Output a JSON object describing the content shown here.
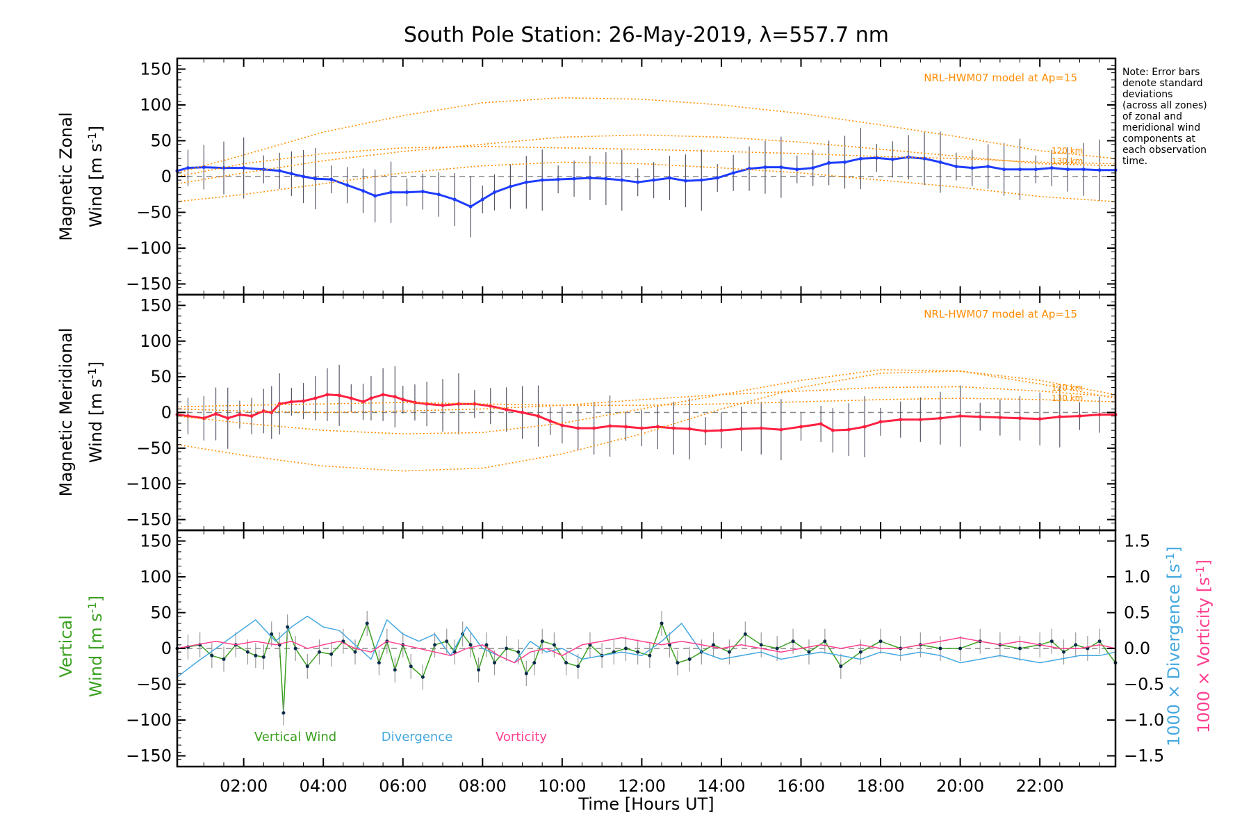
{
  "chart_data": [
    {
      "type": "line",
      "panel": "zonal",
      "title": "South Pole Station: 26-May-2019, λ=557.7 nm",
      "ylabel_line1": "Magnetic Zonal",
      "ylabel_line2": "Wind [m s",
      "ylabel_sup": "-1",
      "ylabel_close": "]",
      "xlim": [
        0.33,
        23.9
      ],
      "ylim": [
        -165,
        165
      ],
      "yticks": [
        -150,
        -100,
        -50,
        0,
        50,
        100,
        150
      ],
      "ytick_labels": [
        "−150",
        "−100",
        "−50",
        "0",
        "50",
        "100",
        "150"
      ],
      "model_label": "NRL-HWM07 model at Ap=15",
      "alt_labels": [
        "120 km",
        "130 km"
      ],
      "series": [
        {
          "name": "Zonal wind",
          "color": "#1e3cff",
          "x": [
            0.33,
            0.6,
            1.0,
            1.5,
            2.0,
            2.5,
            2.9,
            3.2,
            3.5,
            3.8,
            4.2,
            4.6,
            5.0,
            5.3,
            5.7,
            6.1,
            6.5,
            6.9,
            7.3,
            7.7,
            8.0,
            8.3,
            8.7,
            9.1,
            9.5,
            9.9,
            10.3,
            10.7,
            11.1,
            11.5,
            11.9,
            12.3,
            12.7,
            13.1,
            13.5,
            13.9,
            14.3,
            14.7,
            15.1,
            15.5,
            15.9,
            16.3,
            16.7,
            17.1,
            17.5,
            17.9,
            18.3,
            18.7,
            19.1,
            19.5,
            19.9,
            20.3,
            20.7,
            21.1,
            21.5,
            21.9,
            22.3,
            22.7,
            23.1,
            23.5,
            23.9
          ],
          "values": [
            8,
            12,
            13,
            12,
            12,
            10,
            8,
            4,
            0,
            -3,
            -4,
            -12,
            -20,
            -27,
            -22,
            -22,
            -21,
            -25,
            -32,
            -42,
            -32,
            -22,
            -14,
            -8,
            -5,
            -4,
            -3,
            -2,
            -3,
            -5,
            -8,
            -5,
            -2,
            -6,
            -5,
            -2,
            5,
            11,
            13,
            13,
            10,
            12,
            19,
            20,
            25,
            26,
            24,
            27,
            25,
            20,
            14,
            12,
            14,
            10,
            10,
            10,
            12,
            10,
            10,
            9,
            9
          ]
        },
        {
          "name": "Model 1",
          "color": "#ff8c00",
          "style": "dotted",
          "x": [
            0.33,
            2,
            4,
            6,
            8,
            10,
            12,
            14,
            16,
            18,
            20,
            22,
            23.9
          ],
          "values": [
            5,
            30,
            62,
            85,
            103,
            110,
            108,
            100,
            88,
            72,
            55,
            36,
            25
          ]
        },
        {
          "name": "Model 2",
          "color": "#ff8c00",
          "style": "dotted",
          "x": [
            0.33,
            2,
            4,
            6,
            8,
            10,
            12,
            14,
            16,
            18,
            20,
            22,
            23.9
          ],
          "values": [
            -10,
            5,
            22,
            35,
            45,
            55,
            58,
            55,
            48,
            38,
            28,
            18,
            15
          ]
        },
        {
          "name": "Model 3",
          "color": "#ff8c00",
          "style": "dotted",
          "x": [
            0.33,
            2,
            4,
            6,
            8,
            10,
            12,
            14,
            16,
            18,
            20,
            22,
            23.9
          ],
          "values": [
            0,
            18,
            32,
            40,
            42,
            40,
            38,
            35,
            32,
            28,
            25,
            20,
            18
          ]
        },
        {
          "name": "Model 4",
          "color": "#ff8c00",
          "style": "dotted",
          "x": [
            0.33,
            2,
            4,
            6,
            8,
            10,
            12,
            14,
            16,
            18,
            20,
            22,
            23.9
          ],
          "values": [
            -35,
            -25,
            -10,
            5,
            15,
            20,
            18,
            12,
            5,
            -5,
            -15,
            -28,
            -35
          ]
        }
      ]
    },
    {
      "type": "line",
      "panel": "meridional",
      "ylabel_line1": "Magnetic Meridional",
      "ylabel_line2": "Wind [m s",
      "ylabel_sup": "-1",
      "ylabel_close": "]",
      "xlim": [
        0.33,
        23.9
      ],
      "ylim": [
        -165,
        165
      ],
      "yticks": [
        -150,
        -100,
        -50,
        0,
        50,
        100,
        150
      ],
      "ytick_labels": [
        "−150",
        "−100",
        "−50",
        "0",
        "50",
        "100",
        "150"
      ],
      "model_label": "NRL-HWM07 model at Ap=15",
      "alt_labels": [
        "120 km",
        "130 km"
      ],
      "series": [
        {
          "name": "Meridional wind",
          "color": "#ff2040",
          "x": [
            0.33,
            0.6,
            1.0,
            1.3,
            1.6,
            1.9,
            2.2,
            2.5,
            2.7,
            2.9,
            3.2,
            3.5,
            3.8,
            4.1,
            4.4,
            4.7,
            5.0,
            5.2,
            5.5,
            5.8,
            6.0,
            6.3,
            6.6,
            7.0,
            7.4,
            7.8,
            8.2,
            8.6,
            9.0,
            9.4,
            9.7,
            10.0,
            10.4,
            10.8,
            11.2,
            11.6,
            12.0,
            12.4,
            12.8,
            13.2,
            13.6,
            14.0,
            14.5,
            15.0,
            15.5,
            16.0,
            16.5,
            16.8,
            17.2,
            17.6,
            18.0,
            18.5,
            19.0,
            19.5,
            20.0,
            20.5,
            21.0,
            21.5,
            22.0,
            22.5,
            23.0,
            23.5,
            23.9
          ],
          "values": [
            -3,
            -5,
            -8,
            -2,
            -8,
            -3,
            -5,
            2,
            0,
            12,
            15,
            16,
            20,
            25,
            24,
            20,
            15,
            20,
            25,
            22,
            18,
            14,
            12,
            10,
            12,
            12,
            9,
            4,
            0,
            -5,
            -12,
            -18,
            -22,
            -22,
            -19,
            -20,
            -22,
            -20,
            -22,
            -23,
            -26,
            -25,
            -23,
            -22,
            -24,
            -20,
            -16,
            -25,
            -24,
            -20,
            -13,
            -10,
            -10,
            -8,
            -5,
            -6,
            -7,
            -8,
            -9,
            -6,
            -5,
            -3,
            -3
          ]
        },
        {
          "name": "Model 1",
          "color": "#ff8c00",
          "style": "dotted",
          "x": [
            0.33,
            2,
            4,
            6,
            8,
            10,
            12,
            14,
            16,
            18,
            20,
            22,
            23.9
          ],
          "values": [
            -45,
            -60,
            -75,
            -82,
            -78,
            -58,
            -30,
            5,
            35,
            55,
            58,
            45,
            25
          ]
        },
        {
          "name": "Model 2",
          "color": "#ff8c00",
          "style": "dotted",
          "x": [
            0.33,
            2,
            4,
            6,
            8,
            10,
            12,
            14,
            16,
            18,
            20,
            22,
            23.9
          ],
          "values": [
            -5,
            -15,
            -25,
            -30,
            -28,
            -15,
            5,
            25,
            45,
            60,
            58,
            40,
            20
          ]
        },
        {
          "name": "Model 3",
          "color": "#ff8c00",
          "style": "dotted",
          "x": [
            0.33,
            2,
            4,
            6,
            8,
            10,
            12,
            14,
            16,
            18,
            20,
            22,
            23.9
          ],
          "values": [
            5,
            2,
            0,
            2,
            5,
            10,
            18,
            25,
            30,
            35,
            36,
            30,
            22
          ]
        },
        {
          "name": "Model 4",
          "color": "#ff8c00",
          "style": "dotted",
          "x": [
            0.33,
            2,
            4,
            6,
            8,
            10,
            12,
            14,
            16,
            18,
            20,
            22,
            23.9
          ],
          "values": [
            8,
            10,
            12,
            14,
            12,
            10,
            10,
            12,
            15,
            18,
            20,
            18,
            15
          ]
        }
      ]
    },
    {
      "type": "line",
      "panel": "vertical",
      "xlabel": "Time [Hours UT]",
      "ylabel_line1": "Vertical",
      "ylabel_line2": "Wind [m s",
      "ylabel_sup": "-1",
      "ylabel_close": "]",
      "xlim": [
        0.33,
        23.9
      ],
      "xticks": [
        2,
        4,
        6,
        8,
        10,
        12,
        14,
        16,
        18,
        20,
        22
      ],
      "xtick_labels": [
        "02:00",
        "04:00",
        "06:00",
        "08:00",
        "10:00",
        "12:00",
        "14:00",
        "16:00",
        "18:00",
        "20:00",
        "22:00"
      ],
      "ylim": [
        -165,
        165
      ],
      "yticks": [
        -150,
        -100,
        -50,
        0,
        50,
        100,
        150
      ],
      "ytick_labels": [
        "−150",
        "−100",
        "−50",
        "0",
        "50",
        "100",
        "150"
      ],
      "y2lim": [
        -1.65,
        1.65
      ],
      "y2ticks": [
        -1.5,
        -1.0,
        -0.5,
        0.0,
        0.5,
        1.0,
        1.5
      ],
      "y2tick_labels": [
        "−1.5",
        "−1.0",
        "−0.5",
        "0.0",
        "0.5",
        "1.0",
        "1.5"
      ],
      "y2label_div": "1000 × Divergence [s",
      "y2label_vort": "1000 × Vorticity [s",
      "y2label_sup": "-1",
      "y2label_close": "]",
      "legend": [
        "Vertical Wind",
        "Divergence",
        "Vorticity"
      ],
      "series": [
        {
          "name": "Vertical Wind",
          "color": "#3aa020",
          "axis": "left",
          "x": [
            0.33,
            0.6,
            0.9,
            1.2,
            1.5,
            1.8,
            2.1,
            2.3,
            2.5,
            2.7,
            2.9,
            3.0,
            3.1,
            3.3,
            3.6,
            3.9,
            4.2,
            4.5,
            4.8,
            5.1,
            5.4,
            5.6,
            5.8,
            6.0,
            6.2,
            6.5,
            6.8,
            7.1,
            7.3,
            7.5,
            7.7,
            7.9,
            8.1,
            8.3,
            8.6,
            8.9,
            9.1,
            9.3,
            9.5,
            9.8,
            10.1,
            10.4,
            10.7,
            11.0,
            11.3,
            11.6,
            11.9,
            12.2,
            12.5,
            12.7,
            12.9,
            13.2,
            13.5,
            13.8,
            14.2,
            14.6,
            15.0,
            15.4,
            15.8,
            16.2,
            16.6,
            17.0,
            17.5,
            18.0,
            18.5,
            19.0,
            19.5,
            20.0,
            20.5,
            21.0,
            21.5,
            22.0,
            22.3,
            22.6,
            22.9,
            23.2,
            23.5,
            23.9
          ],
          "values": [
            0,
            2,
            5,
            -10,
            -15,
            5,
            -5,
            -10,
            -12,
            20,
            5,
            -90,
            30,
            0,
            -25,
            -5,
            -8,
            10,
            -5,
            35,
            -20,
            10,
            -30,
            5,
            -25,
            -40,
            5,
            10,
            -5,
            20,
            5,
            -30,
            5,
            -20,
            0,
            -5,
            -35,
            -20,
            10,
            5,
            -20,
            -25,
            5,
            -10,
            -5,
            0,
            -5,
            -10,
            35,
            5,
            -20,
            -15,
            -5,
            5,
            -5,
            20,
            5,
            0,
            10,
            -5,
            10,
            -25,
            -5,
            10,
            0,
            5,
            0,
            0,
            10,
            5,
            0,
            5,
            10,
            -5,
            5,
            0,
            10,
            -20
          ]
        },
        {
          "name": "Divergence",
          "color": "#45a8e0",
          "axis": "right",
          "x": [
            0.33,
            0.8,
            1.3,
            1.8,
            2.3,
            2.8,
            3.2,
            3.6,
            4.0,
            4.4,
            4.8,
            5.2,
            5.6,
            6.0,
            6.4,
            6.8,
            7.2,
            7.6,
            8.0,
            8.4,
            8.8,
            9.2,
            9.6,
            10.0,
            10.5,
            11.0,
            11.5,
            12.0,
            12.5,
            13.0,
            13.5,
            14.0,
            14.5,
            15.0,
            15.5,
            16.0,
            16.5,
            17.0,
            17.5,
            18.0,
            18.5,
            19.0,
            19.5,
            20.0,
            20.5,
            21.0,
            21.5,
            22.0,
            22.5,
            23.0,
            23.5,
            23.9
          ],
          "values": [
            -0.4,
            -0.2,
            0.0,
            0.2,
            0.4,
            0.1,
            0.3,
            0.45,
            0.3,
            0.25,
            0.05,
            -0.15,
            0.4,
            0.2,
            0.1,
            0.2,
            -0.1,
            0.3,
            0.0,
            -0.1,
            -0.2,
            0.1,
            -0.05,
            0.0,
            -0.15,
            -0.1,
            -0.05,
            -0.1,
            0.1,
            0.35,
            -0.05,
            -0.15,
            -0.1,
            -0.05,
            -0.15,
            -0.1,
            -0.05,
            -0.1,
            -0.15,
            -0.05,
            -0.1,
            -0.05,
            -0.1,
            -0.2,
            -0.15,
            -0.1,
            -0.15,
            -0.2,
            -0.15,
            -0.1,
            -0.1,
            -0.05
          ]
        },
        {
          "name": "Vorticity",
          "color": "#ff4090",
          "axis": "right",
          "x": [
            0.33,
            0.8,
            1.3,
            1.8,
            2.3,
            2.8,
            3.2,
            3.6,
            4.0,
            4.4,
            4.8,
            5.2,
            5.6,
            6.0,
            6.4,
            6.8,
            7.2,
            7.6,
            8.0,
            8.4,
            8.8,
            9.2,
            9.6,
            10.0,
            10.5,
            11.0,
            11.5,
            12.0,
            12.5,
            13.0,
            13.5,
            14.0,
            14.5,
            15.0,
            15.5,
            16.0,
            16.5,
            17.0,
            17.5,
            18.0,
            18.5,
            19.0,
            19.5,
            20.0,
            20.5,
            21.0,
            21.5,
            22.0,
            22.5,
            23.0,
            23.5,
            23.9
          ],
          "values": [
            0.0,
            0.05,
            0.1,
            0.05,
            0.1,
            0.05,
            0.1,
            0.0,
            0.05,
            0.1,
            0.0,
            -0.05,
            0.1,
            0.05,
            0.0,
            -0.05,
            -0.1,
            0.0,
            0.05,
            -0.1,
            -0.2,
            -0.05,
            0.0,
            -0.1,
            0.05,
            0.1,
            0.15,
            0.1,
            0.05,
            0.1,
            0.05,
            0.0,
            0.05,
            0.0,
            -0.05,
            0.0,
            0.05,
            0.0,
            0.05,
            0.0,
            0.0,
            0.05,
            0.1,
            0.15,
            0.1,
            0.05,
            0.1,
            0.05,
            0.0,
            0.0,
            0.05,
            0.0
          ]
        }
      ]
    }
  ],
  "note": [
    "Note: Error bars",
    "denote standard",
    "deviations",
    "(across all zones)",
    "of zonal and",
    "meridional wind",
    "components at",
    "each observation",
    "time."
  ]
}
